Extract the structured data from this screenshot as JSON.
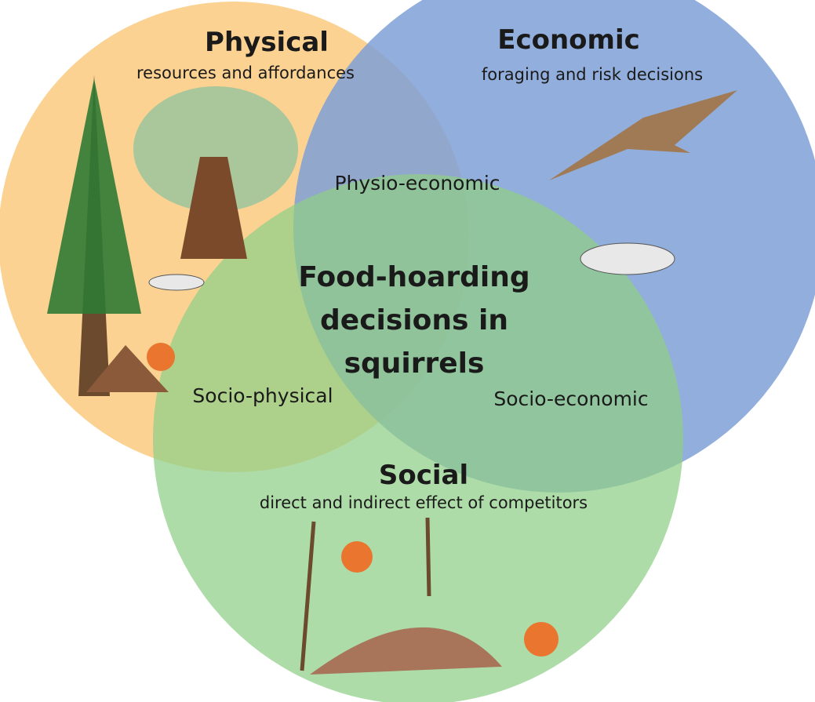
{
  "sets": [
    {
      "title": "Physical",
      "subtitle": "resources and affordances"
    },
    {
      "title": "Economic",
      "subtitle": "foraging and risk decisions"
    },
    {
      "title": "Social",
      "subtitle": "direct and indirect effect of competitors"
    }
  ],
  "overlaps": {
    "physical_economic": "Physio-economic",
    "social_physical": "Socio-physical",
    "social_economic": "Socio-economic"
  },
  "center": {
    "lines": [
      "Food-hoarding",
      "decisions in",
      "squirrels"
    ]
  }
}
